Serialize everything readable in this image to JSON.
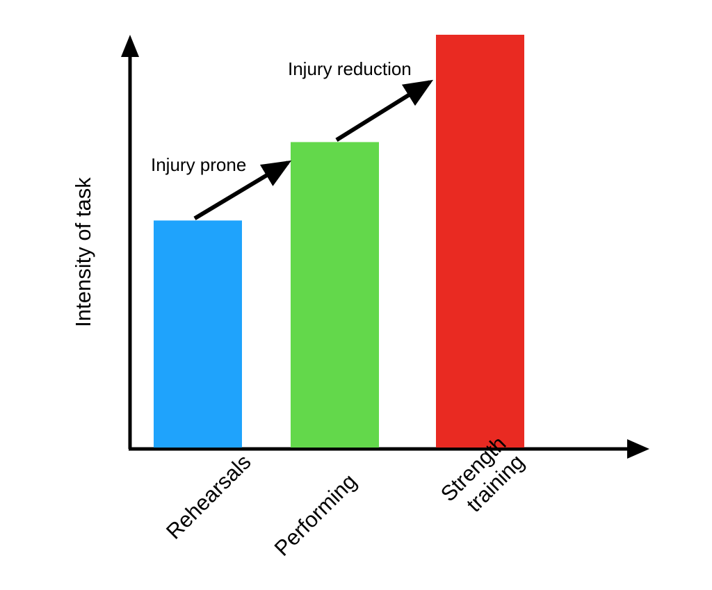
{
  "chart_data": {
    "type": "bar",
    "title": "",
    "xlabel": "",
    "ylabel": "Intensity of task",
    "categories": [
      [
        "Rehearsals"
      ],
      [
        "Performing"
      ],
      [
        "Strength",
        "training"
      ]
    ],
    "values": [
      0.55,
      0.74,
      1.0
    ],
    "ylim": [
      0,
      1.1
    ],
    "colors": [
      "#1FA3FC",
      "#63D84B",
      "#E92A22"
    ],
    "grid": false,
    "legend": "none",
    "annotations": [
      {
        "text": "Injury prone",
        "from": 0,
        "to": 1
      },
      {
        "text": "Injury reduction",
        "from": 1,
        "to": 2
      }
    ]
  }
}
